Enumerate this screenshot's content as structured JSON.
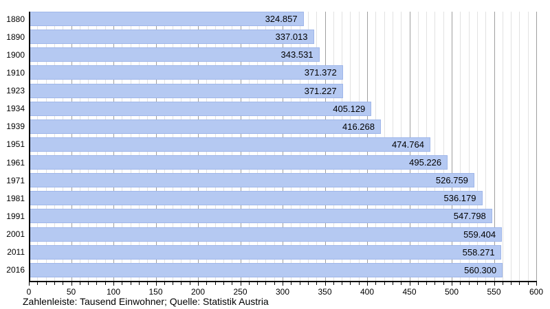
{
  "caption": "Zahlenleiste: Tausend Einwohner; Quelle: Statistik Austria",
  "chart_data": {
    "type": "bar",
    "orientation": "horizontal",
    "title": "",
    "xlabel": "",
    "ylabel": "",
    "categories": [
      "1880",
      "1890",
      "1900",
      "1910",
      "1923",
      "1934",
      "1939",
      "1951",
      "1961",
      "1971",
      "1981",
      "1991",
      "2001",
      "2011",
      "2016"
    ],
    "values": [
      324.857,
      337.013,
      343.531,
      371.372,
      371.227,
      405.129,
      416.268,
      474.764,
      495.226,
      526.759,
      536.179,
      547.798,
      559.404,
      558.271,
      560.3
    ],
    "value_labels": [
      "324.857",
      "337.013",
      "343.531",
      "371.372",
      "371.227",
      "405.129",
      "416.268",
      "474.764",
      "495.226",
      "526.759",
      "536.179",
      "547.798",
      "559.404",
      "558.271",
      "560.300"
    ],
    "xlim": [
      0,
      600
    ],
    "x_major_tick_step": 50,
    "x_minor_tick_step": 10,
    "x_tick_labels": [
      "0",
      "50",
      "100",
      "150",
      "200",
      "250",
      "300",
      "350",
      "400",
      "450",
      "500",
      "550",
      "600"
    ],
    "grid": "vertical",
    "legend_position": "none",
    "colors": {
      "bar_fill": "#b5c9f2",
      "grid_minor": "#e1e1e1",
      "grid_major": "#9e9e9e",
      "axis": "#000000",
      "text": "#000000"
    }
  }
}
